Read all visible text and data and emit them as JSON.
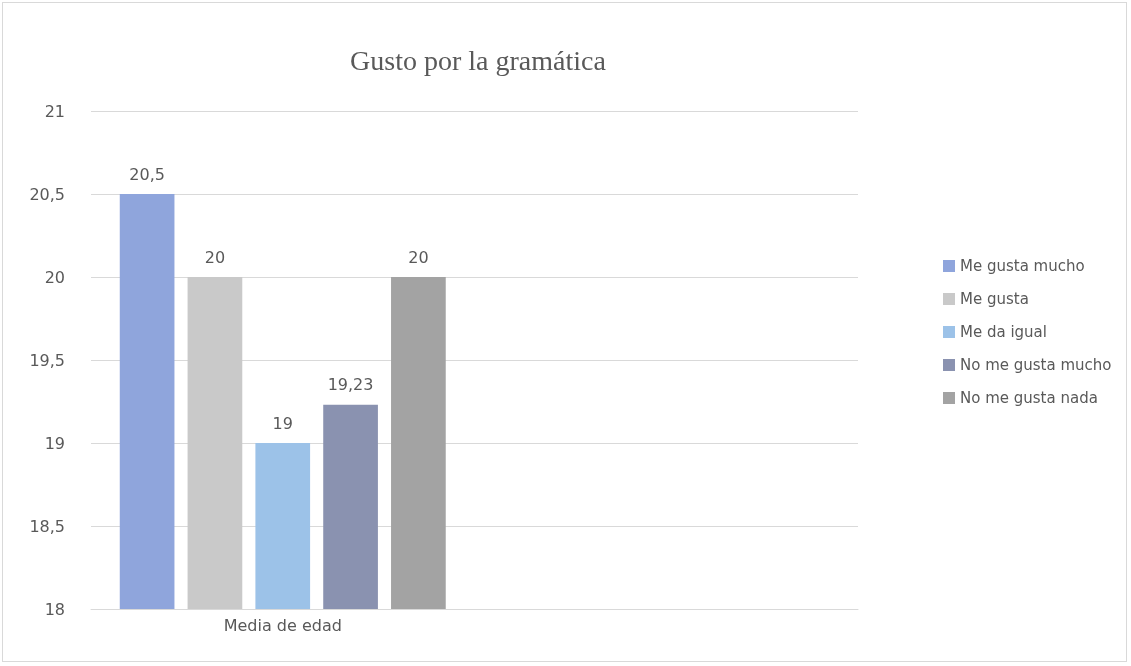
{
  "chart_data": {
    "type": "bar",
    "title": "Gusto por la gramática",
    "categories": [
      "Media de edad",
      null
    ],
    "series": [
      {
        "name": "Me gusta mucho",
        "color": "#8fa5dc",
        "values": [
          20.5,
          null
        ],
        "value_labels": [
          "20,5",
          null
        ]
      },
      {
        "name": "Me gusta",
        "color": "#c9c9c9",
        "values": [
          20,
          null
        ],
        "value_labels": [
          "20",
          null
        ]
      },
      {
        "name": "Me da igual",
        "color": "#9cc2e8",
        "values": [
          19,
          null
        ],
        "value_labels": [
          "19",
          null
        ]
      },
      {
        "name": "No me gusta mucho",
        "color": "#8a92b0",
        "values": [
          19.23,
          null
        ],
        "value_labels": [
          "19,23",
          null
        ]
      },
      {
        "name": "No me gusta nada",
        "color": "#a3a3a3",
        "values": [
          20,
          null
        ],
        "value_labels": [
          "20",
          null
        ]
      }
    ],
    "ylim": [
      18,
      21
    ],
    "yticks": [
      18,
      {
        "value": 18.5,
        "label": "18,5"
      },
      19,
      {
        "value": 19.5,
        "label": "19,5"
      },
      20,
      {
        "value": 20.5,
        "label": "20,5"
      },
      21
    ],
    "grid": "y",
    "legend": "right"
  }
}
